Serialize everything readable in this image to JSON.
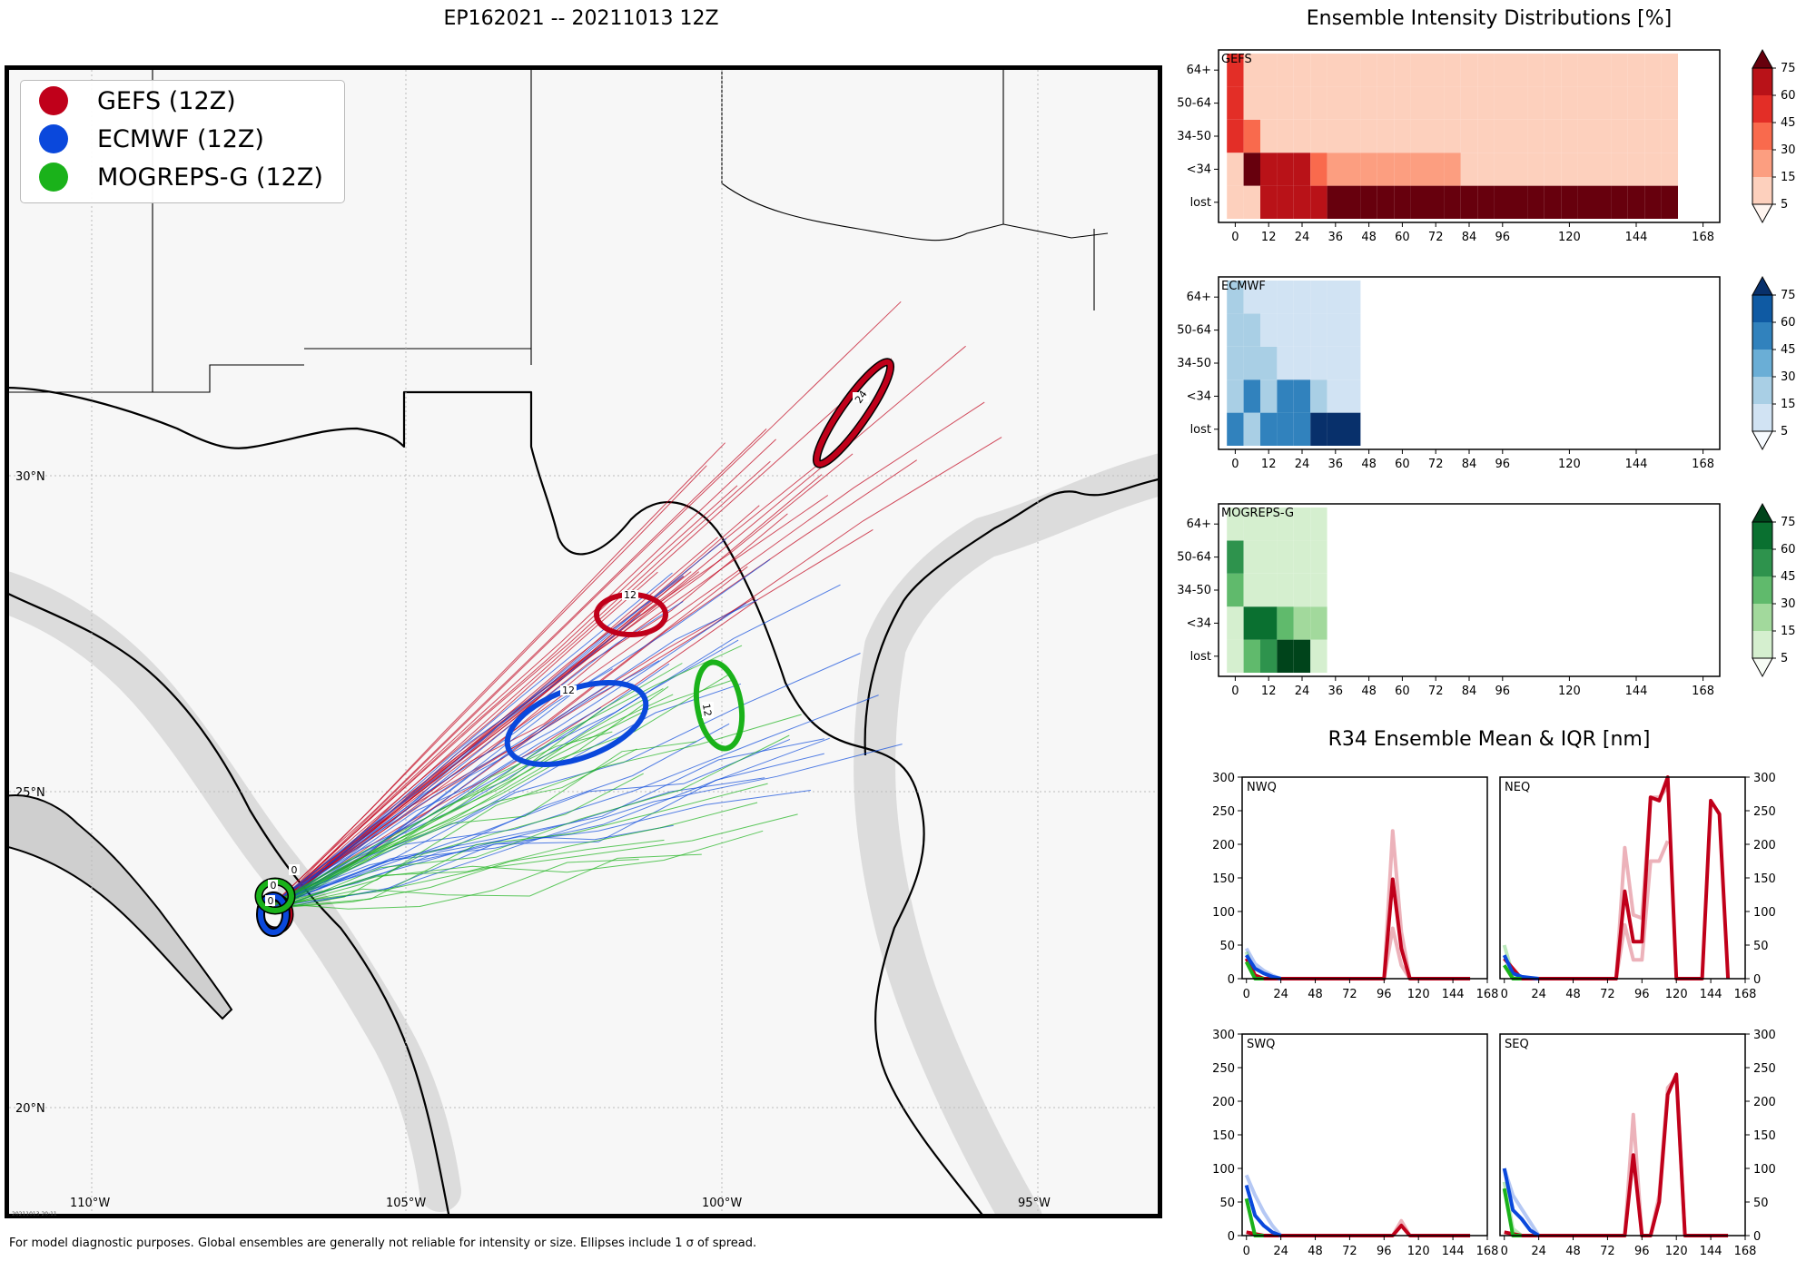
{
  "title": "EP162021 -- 20211013 12Z",
  "footer_note": "For model diagnostic purposes. Global ensembles are generally not reliable for intensity or size. Ellipses include 1 σ of spread.",
  "stamp": "20211013 20:11",
  "legend": [
    {
      "label": "GEFS (12Z)",
      "color": "#c0001a"
    },
    {
      "label": "ECMWF (12Z)",
      "color": "#0a48dc"
    },
    {
      "label": "MOGREPS-G (12Z)",
      "color": "#1ab21a"
    }
  ],
  "map": {
    "lon_labels": [
      "110°W",
      "105°W",
      "100°W",
      "95°W"
    ],
    "lat_labels": [
      "30°N",
      "25°N",
      "20°N"
    ],
    "ellipse_labels": {
      "gefs_0": "0",
      "gefs_12": "12",
      "gefs_24": "24",
      "ecmwf_0": "0",
      "ecmwf_12": "12",
      "mogreps_0": "0",
      "mogreps_12": "12"
    },
    "origin_lon_lat": [
      -107.3,
      23.6
    ],
    "ellipse_centers_lon_lat": {
      "gefs_12": [
        -101.6,
        27.7
      ],
      "gefs_24": [
        -97.6,
        30.8
      ],
      "ecmwf_12": [
        -102.3,
        26.1
      ],
      "mogreps_12": [
        -100.0,
        26.3
      ]
    }
  },
  "chart_data": [
    {
      "type": "heatmap",
      "title": "Ensemble Intensity Distributions [%]",
      "panels": [
        {
          "name": "GEFS",
          "colormap": "Reds",
          "y_categories": [
            "lost",
            "<34",
            "34-50",
            "50-64",
            "64+"
          ],
          "x_ticks": [
            "0",
            "12",
            "24",
            "36",
            "48",
            "60",
            "72",
            "84",
            "96",
            "120",
            "144",
            "168"
          ],
          "x_step_hours": 6,
          "colorbar_ticks": [
            "5",
            "15",
            "30",
            "45",
            "60",
            "75"
          ],
          "rows": {
            "64+": [
              50,
              8,
              8,
              8,
              8,
              8,
              8,
              8,
              8,
              8,
              8,
              8,
              8,
              8,
              8,
              8,
              8,
              8,
              8,
              8,
              8,
              8,
              8,
              8,
              8,
              8,
              8
            ],
            "50-64": [
              50,
              8,
              8,
              8,
              8,
              8,
              8,
              8,
              8,
              8,
              8,
              8,
              8,
              8,
              8,
              8,
              8,
              8,
              8,
              8,
              8,
              8,
              8,
              8,
              8,
              8,
              8
            ],
            "34-50": [
              50,
              30,
              8,
              8,
              8,
              8,
              8,
              8,
              8,
              8,
              8,
              8,
              8,
              8,
              8,
              8,
              8,
              8,
              8,
              8,
              8,
              8,
              8,
              8,
              8,
              8,
              8
            ],
            "<34": [
              8,
              78,
              60,
              60,
              60,
              32,
              15,
              15,
              15,
              15,
              15,
              15,
              15,
              15,
              8,
              8,
              8,
              8,
              8,
              8,
              8,
              8,
              8,
              8,
              8,
              8,
              8
            ],
            "lost": [
              8,
              8,
              60,
              60,
              60,
              60,
              75,
              80,
              80,
              80,
              80,
              80,
              80,
              80,
              80,
              80,
              80,
              80,
              80,
              80,
              80,
              80,
              80,
              80,
              80,
              80,
              80
            ]
          }
        },
        {
          "name": "ECMWF",
          "colormap": "Blues",
          "y_categories": [
            "lost",
            "<34",
            "34-50",
            "50-64",
            "64+"
          ],
          "x_ticks": [
            "0",
            "12",
            "24",
            "36",
            "48",
            "60",
            "72",
            "84",
            "96",
            "120",
            "144",
            "168"
          ],
          "x_step_hours": 6,
          "colorbar_ticks": [
            "5",
            "15",
            "30",
            "45",
            "60",
            "75"
          ],
          "rows": {
            "64+": [
              28,
              8,
              8,
              8,
              8,
              8,
              8,
              8
            ],
            "50-64": [
              28,
              28,
              8,
              8,
              8,
              8,
              8,
              8
            ],
            "34-50": [
              28,
              28,
              28,
              8,
              8,
              8,
              8,
              8
            ],
            "<34": [
              28,
              50,
              28,
              55,
              55,
              28,
              8,
              8
            ],
            "lost": [
              50,
              28,
              50,
              55,
              55,
              80,
              80,
              80
            ]
          }
        },
        {
          "name": "MOGREPS-G",
          "colormap": "Greens",
          "y_categories": [
            "lost",
            "<34",
            "34-50",
            "50-64",
            "64+"
          ],
          "x_ticks": [
            "0",
            "12",
            "24",
            "36",
            "48",
            "60",
            "72",
            "84",
            "96",
            "120",
            "144",
            "168"
          ],
          "x_step_hours": 6,
          "colorbar_ticks": [
            "5",
            "15",
            "30",
            "45",
            "60",
            "75"
          ],
          "rows": {
            "64+": [
              8,
              8,
              8,
              8,
              8,
              8
            ],
            "50-64": [
              55,
              8,
              8,
              8,
              8,
              8
            ],
            "34-50": [
              40,
              8,
              8,
              8,
              8,
              8
            ],
            "<34": [
              8,
              70,
              70,
              40,
              15,
              15
            ],
            "lost": [
              8,
              30,
              50,
              80,
              80,
              8
            ]
          }
        }
      ]
    },
    {
      "type": "line",
      "title": "R34 Ensemble Mean & IQR [nm]",
      "x_ticks": [
        "0",
        "24",
        "48",
        "72",
        "96",
        "120",
        "144",
        "168"
      ],
      "y_ticks": [
        "0",
        "50",
        "100",
        "150",
        "200",
        "250",
        "300"
      ],
      "xlim": [
        -3,
        168
      ],
      "ylim": [
        0,
        300
      ],
      "panels": [
        {
          "name": "NWQ",
          "series": [
            {
              "name": "GEFS mean",
              "x": [
                0,
                6,
                12,
                18,
                24,
                36,
                48,
                60,
                72,
                84,
                90,
                96,
                102,
                108,
                114,
                120,
                132,
                144,
                156
              ],
              "y": [
                30,
                5,
                0,
                0,
                0,
                0,
                0,
                0,
                0,
                0,
                0,
                0,
                148,
                45,
                0,
                0,
                0,
                0,
                0
              ]
            },
            {
              "name": "GEFS IQR upper",
              "x": [
                90,
                96,
                102,
                108,
                114
              ],
              "y": [
                0,
                0,
                220,
                70,
                0
              ]
            },
            {
              "name": "GEFS IQR lower",
              "x": [
                90,
                96,
                102,
                108,
                114
              ],
              "y": [
                0,
                0,
                75,
                20,
                0
              ]
            },
            {
              "name": "ECMWF mean",
              "x": [
                0,
                6,
                12,
                18,
                24
              ],
              "y": [
                35,
                15,
                8,
                3,
                0
              ]
            },
            {
              "name": "ECMWF IQR upper",
              "x": [
                0,
                6,
                12,
                18,
                24
              ],
              "y": [
                45,
                22,
                12,
                5,
                0
              ]
            },
            {
              "name": "MOGREPS-G mean",
              "x": [
                0,
                6,
                12
              ],
              "y": [
                25,
                0,
                0
              ]
            },
            {
              "name": "MOGREPS-G IQR upper",
              "x": [
                0,
                6,
                12
              ],
              "y": [
                40,
                5,
                0
              ]
            }
          ]
        },
        {
          "name": "NEQ",
          "series": [
            {
              "name": "GEFS mean",
              "x": [
                0,
                12,
                24,
                36,
                48,
                60,
                72,
                78,
                84,
                90,
                96,
                102,
                108,
                114,
                120,
                126,
                132,
                138,
                144,
                150,
                156
              ],
              "y": [
                30,
                0,
                0,
                0,
                0,
                0,
                0,
                0,
                130,
                55,
                55,
                270,
                265,
                300,
                0,
                0,
                0,
                0,
                265,
                245,
                0
              ]
            },
            {
              "name": "GEFS IQR upper",
              "x": [
                78,
                84,
                90,
                96,
                102,
                108,
                114
              ],
              "y": [
                0,
                195,
                95,
                90,
                270,
                270,
                285
              ]
            },
            {
              "name": "GEFS IQR lower",
              "x": [
                78,
                84,
                90,
                96,
                102,
                108,
                114
              ],
              "y": [
                0,
                80,
                28,
                28,
                175,
                175,
                205
              ]
            },
            {
              "name": "ECMWF mean",
              "x": [
                0,
                6,
                12,
                24
              ],
              "y": [
                35,
                8,
                3,
                0
              ]
            },
            {
              "name": "MOGREPS-G mean",
              "x": [
                0,
                6,
                12
              ],
              "y": [
                20,
                0,
                0
              ]
            },
            {
              "name": "MOGREPS-G IQR upper",
              "x": [
                0,
                6,
                12
              ],
              "y": [
                50,
                5,
                0
              ]
            }
          ]
        },
        {
          "name": "SWQ",
          "series": [
            {
              "name": "GEFS mean",
              "x": [
                0,
                12,
                24,
                48,
                72,
                96,
                102,
                108,
                114,
                120,
                144,
                156
              ],
              "y": [
                5,
                0,
                0,
                0,
                0,
                0,
                0,
                15,
                0,
                0,
                0,
                0
              ]
            },
            {
              "name": "GEFS IQR upper",
              "x": [
                102,
                108,
                114
              ],
              "y": [
                0,
                22,
                0
              ]
            },
            {
              "name": "ECMWF mean",
              "x": [
                0,
                6,
                12,
                18,
                24
              ],
              "y": [
                75,
                30,
                15,
                5,
                0
              ]
            },
            {
              "name": "ECMWF IQR upper",
              "x": [
                0,
                6,
                12,
                18,
                24
              ],
              "y": [
                90,
                60,
                35,
                15,
                0
              ]
            },
            {
              "name": "MOGREPS-G mean",
              "x": [
                0,
                6,
                12
              ],
              "y": [
                55,
                0,
                0
              ]
            }
          ]
        },
        {
          "name": "SEQ",
          "series": [
            {
              "name": "GEFS mean",
              "x": [
                0,
                12,
                24,
                36,
                48,
                60,
                72,
                84,
                90,
                96,
                102,
                108,
                114,
                120,
                126,
                132,
                144,
                156
              ],
              "y": [
                5,
                0,
                0,
                0,
                0,
                0,
                0,
                0,
                120,
                0,
                0,
                50,
                210,
                240,
                0,
                0,
                0,
                0
              ]
            },
            {
              "name": "GEFS IQR upper",
              "x": [
                84,
                90,
                96,
                102,
                108,
                114,
                120,
                126
              ],
              "y": [
                0,
                180,
                0,
                0,
                60,
                220,
                235,
                0
              ]
            },
            {
              "name": "ECMWF mean",
              "x": [
                0,
                6,
                12,
                18,
                24
              ],
              "y": [
                100,
                38,
                25,
                8,
                0
              ]
            },
            {
              "name": "ECMWF IQR upper",
              "x": [
                0,
                6,
                12,
                18,
                24
              ],
              "y": [
                100,
                60,
                40,
                20,
                0
              ]
            },
            {
              "name": "MOGREPS-G mean",
              "x": [
                0,
                6,
                12
              ],
              "y": [
                70,
                0,
                0
              ]
            },
            {
              "name": "MOGREPS-G IQR upper",
              "x": [
                0,
                6,
                12
              ],
              "y": [
                80,
                10,
                0
              ]
            }
          ]
        }
      ]
    }
  ]
}
